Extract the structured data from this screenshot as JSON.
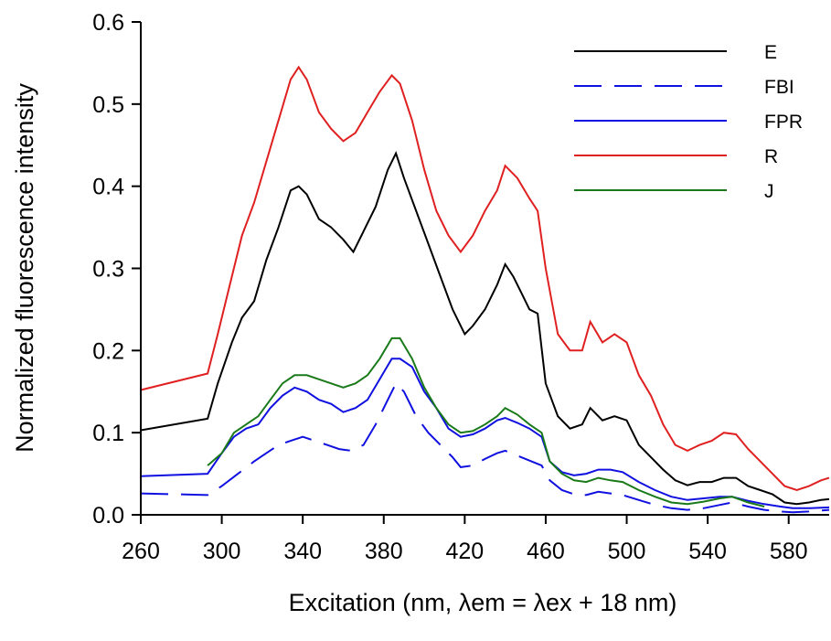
{
  "chart_data": {
    "type": "line",
    "title": "",
    "xlabel": "Excitation (nm, λem = λex + 18 nm)",
    "ylabel": "Normalized fluorescence intensity",
    "xlim": [
      260,
      600
    ],
    "ylim": [
      0.0,
      0.6
    ],
    "x_ticks": [
      "260",
      "300",
      "340",
      "380",
      "420",
      "460",
      "500",
      "540",
      "580"
    ],
    "y_ticks": [
      "0.0",
      "0.1",
      "0.2",
      "0.3",
      "0.4",
      "0.5",
      "0.6"
    ],
    "grid": false,
    "legend_position": "top-right",
    "series": [
      {
        "name": "E",
        "color": "#000000",
        "dash": "solid",
        "points": [
          [
            260,
            0.103
          ],
          [
            293,
            0.117
          ],
          [
            298,
            0.16
          ],
          [
            305,
            0.21
          ],
          [
            310,
            0.24
          ],
          [
            316,
            0.26
          ],
          [
            322,
            0.31
          ],
          [
            328,
            0.35
          ],
          [
            334,
            0.395
          ],
          [
            338,
            0.4
          ],
          [
            342,
            0.39
          ],
          [
            348,
            0.36
          ],
          [
            354,
            0.35
          ],
          [
            360,
            0.335
          ],
          [
            365,
            0.32
          ],
          [
            370,
            0.345
          ],
          [
            376,
            0.375
          ],
          [
            382,
            0.42
          ],
          [
            386,
            0.44
          ],
          [
            390,
            0.41
          ],
          [
            396,
            0.37
          ],
          [
            402,
            0.33
          ],
          [
            408,
            0.29
          ],
          [
            414,
            0.25
          ],
          [
            420,
            0.22
          ],
          [
            424,
            0.23
          ],
          [
            430,
            0.25
          ],
          [
            436,
            0.28
          ],
          [
            440,
            0.305
          ],
          [
            444,
            0.29
          ],
          [
            448,
            0.27
          ],
          [
            452,
            0.25
          ],
          [
            456,
            0.245
          ],
          [
            460,
            0.16
          ],
          [
            466,
            0.12
          ],
          [
            472,
            0.105
          ],
          [
            478,
            0.11
          ],
          [
            482,
            0.13
          ],
          [
            488,
            0.115
          ],
          [
            494,
            0.12
          ],
          [
            500,
            0.115
          ],
          [
            506,
            0.085
          ],
          [
            512,
            0.07
          ],
          [
            518,
            0.055
          ],
          [
            524,
            0.042
          ],
          [
            530,
            0.036
          ],
          [
            536,
            0.04
          ],
          [
            542,
            0.04
          ],
          [
            548,
            0.045
          ],
          [
            554,
            0.045
          ],
          [
            560,
            0.035
          ],
          [
            566,
            0.03
          ],
          [
            572,
            0.025
          ],
          [
            578,
            0.015
          ],
          [
            584,
            0.013
          ],
          [
            590,
            0.015
          ],
          [
            596,
            0.018
          ],
          [
            600,
            0.019
          ]
        ]
      },
      {
        "name": "FBI",
        "color": "#1010e0",
        "dash": "long-dash",
        "points": [
          [
            260,
            0.026
          ],
          [
            293,
            0.024
          ],
          [
            300,
            0.035
          ],
          [
            308,
            0.05
          ],
          [
            316,
            0.065
          ],
          [
            322,
            0.075
          ],
          [
            328,
            0.085
          ],
          [
            334,
            0.09
          ],
          [
            340,
            0.095
          ],
          [
            346,
            0.09
          ],
          [
            352,
            0.085
          ],
          [
            358,
            0.08
          ],
          [
            364,
            0.078
          ],
          [
            370,
            0.085
          ],
          [
            376,
            0.11
          ],
          [
            382,
            0.14
          ],
          [
            386,
            0.16
          ],
          [
            390,
            0.15
          ],
          [
            396,
            0.12
          ],
          [
            402,
            0.1
          ],
          [
            408,
            0.085
          ],
          [
            414,
            0.07
          ],
          [
            418,
            0.058
          ],
          [
            424,
            0.06
          ],
          [
            430,
            0.068
          ],
          [
            436,
            0.075
          ],
          [
            440,
            0.078
          ],
          [
            446,
            0.072
          ],
          [
            452,
            0.066
          ],
          [
            458,
            0.06
          ],
          [
            462,
            0.042
          ],
          [
            468,
            0.03
          ],
          [
            474,
            0.025
          ],
          [
            480,
            0.024
          ],
          [
            486,
            0.028
          ],
          [
            492,
            0.026
          ],
          [
            498,
            0.024
          ],
          [
            506,
            0.018
          ],
          [
            514,
            0.012
          ],
          [
            522,
            0.008
          ],
          [
            530,
            0.006
          ],
          [
            538,
            0.008
          ],
          [
            546,
            0.012
          ],
          [
            552,
            0.015
          ],
          [
            560,
            0.01
          ],
          [
            568,
            0.006
          ],
          [
            576,
            0.004
          ],
          [
            582,
            0.003
          ],
          [
            590,
            0.004
          ],
          [
            600,
            0.006
          ]
        ]
      },
      {
        "name": "FPR",
        "color": "#1010e0",
        "dash": "solid",
        "points": [
          [
            260,
            0.047
          ],
          [
            293,
            0.05
          ],
          [
            300,
            0.075
          ],
          [
            306,
            0.095
          ],
          [
            312,
            0.105
          ],
          [
            318,
            0.11
          ],
          [
            324,
            0.13
          ],
          [
            330,
            0.145
          ],
          [
            336,
            0.155
          ],
          [
            342,
            0.15
          ],
          [
            348,
            0.14
          ],
          [
            354,
            0.135
          ],
          [
            360,
            0.125
          ],
          [
            366,
            0.13
          ],
          [
            372,
            0.14
          ],
          [
            378,
            0.165
          ],
          [
            384,
            0.19
          ],
          [
            388,
            0.19
          ],
          [
            394,
            0.18
          ],
          [
            400,
            0.15
          ],
          [
            406,
            0.13
          ],
          [
            412,
            0.105
          ],
          [
            418,
            0.095
          ],
          [
            424,
            0.098
          ],
          [
            430,
            0.105
          ],
          [
            436,
            0.115
          ],
          [
            440,
            0.118
          ],
          [
            446,
            0.112
          ],
          [
            452,
            0.105
          ],
          [
            458,
            0.095
          ],
          [
            462,
            0.065
          ],
          [
            468,
            0.052
          ],
          [
            474,
            0.048
          ],
          [
            480,
            0.05
          ],
          [
            486,
            0.055
          ],
          [
            492,
            0.055
          ],
          [
            498,
            0.052
          ],
          [
            506,
            0.04
          ],
          [
            514,
            0.03
          ],
          [
            522,
            0.022
          ],
          [
            530,
            0.018
          ],
          [
            538,
            0.02
          ],
          [
            546,
            0.022
          ],
          [
            552,
            0.022
          ],
          [
            560,
            0.017
          ],
          [
            568,
            0.013
          ],
          [
            576,
            0.01
          ],
          [
            582,
            0.008
          ],
          [
            590,
            0.008
          ],
          [
            600,
            0.009
          ]
        ]
      },
      {
        "name": "R",
        "color": "#e02020",
        "dash": "solid",
        "points": [
          [
            260,
            0.152
          ],
          [
            293,
            0.172
          ],
          [
            298,
            0.22
          ],
          [
            304,
            0.28
          ],
          [
            310,
            0.34
          ],
          [
            316,
            0.38
          ],
          [
            322,
            0.43
          ],
          [
            328,
            0.48
          ],
          [
            334,
            0.53
          ],
          [
            338,
            0.545
          ],
          [
            342,
            0.53
          ],
          [
            348,
            0.49
          ],
          [
            354,
            0.47
          ],
          [
            360,
            0.455
          ],
          [
            366,
            0.465
          ],
          [
            372,
            0.49
          ],
          [
            378,
            0.515
          ],
          [
            384,
            0.535
          ],
          [
            388,
            0.525
          ],
          [
            394,
            0.48
          ],
          [
            400,
            0.42
          ],
          [
            406,
            0.37
          ],
          [
            412,
            0.34
          ],
          [
            418,
            0.32
          ],
          [
            424,
            0.34
          ],
          [
            430,
            0.37
          ],
          [
            436,
            0.395
          ],
          [
            440,
            0.425
          ],
          [
            446,
            0.41
          ],
          [
            452,
            0.385
          ],
          [
            456,
            0.37
          ],
          [
            460,
            0.3
          ],
          [
            466,
            0.22
          ],
          [
            472,
            0.2
          ],
          [
            478,
            0.2
          ],
          [
            482,
            0.235
          ],
          [
            488,
            0.21
          ],
          [
            494,
            0.22
          ],
          [
            500,
            0.21
          ],
          [
            506,
            0.17
          ],
          [
            512,
            0.145
          ],
          [
            518,
            0.11
          ],
          [
            524,
            0.085
          ],
          [
            530,
            0.078
          ],
          [
            536,
            0.085
          ],
          [
            542,
            0.09
          ],
          [
            548,
            0.1
          ],
          [
            554,
            0.098
          ],
          [
            560,
            0.08
          ],
          [
            566,
            0.065
          ],
          [
            572,
            0.05
          ],
          [
            578,
            0.035
          ],
          [
            584,
            0.03
          ],
          [
            590,
            0.035
          ],
          [
            596,
            0.042
          ],
          [
            600,
            0.045
          ]
        ]
      },
      {
        "name": "J",
        "color": "#1a7a1a",
        "dash": "solid",
        "points": [
          [
            293,
            0.06
          ],
          [
            300,
            0.075
          ],
          [
            306,
            0.1
          ],
          [
            312,
            0.11
          ],
          [
            318,
            0.12
          ],
          [
            324,
            0.14
          ],
          [
            330,
            0.16
          ],
          [
            336,
            0.17
          ],
          [
            342,
            0.17
          ],
          [
            348,
            0.165
          ],
          [
            354,
            0.16
          ],
          [
            360,
            0.155
          ],
          [
            366,
            0.16
          ],
          [
            372,
            0.17
          ],
          [
            378,
            0.19
          ],
          [
            384,
            0.215
          ],
          [
            388,
            0.215
          ],
          [
            394,
            0.19
          ],
          [
            400,
            0.155
          ],
          [
            406,
            0.13
          ],
          [
            412,
            0.11
          ],
          [
            418,
            0.1
          ],
          [
            424,
            0.102
          ],
          [
            430,
            0.11
          ],
          [
            436,
            0.12
          ],
          [
            440,
            0.13
          ],
          [
            446,
            0.122
          ],
          [
            452,
            0.11
          ],
          [
            458,
            0.1
          ],
          [
            462,
            0.065
          ],
          [
            468,
            0.05
          ],
          [
            474,
            0.042
          ],
          [
            480,
            0.04
          ],
          [
            486,
            0.045
          ],
          [
            492,
            0.042
          ],
          [
            498,
            0.04
          ],
          [
            506,
            0.03
          ],
          [
            514,
            0.022
          ],
          [
            522,
            0.015
          ],
          [
            530,
            0.013
          ],
          [
            538,
            0.016
          ],
          [
            546,
            0.02
          ],
          [
            552,
            0.022
          ],
          [
            560,
            0.015
          ],
          [
            568,
            0.01
          ]
        ]
      }
    ]
  }
}
